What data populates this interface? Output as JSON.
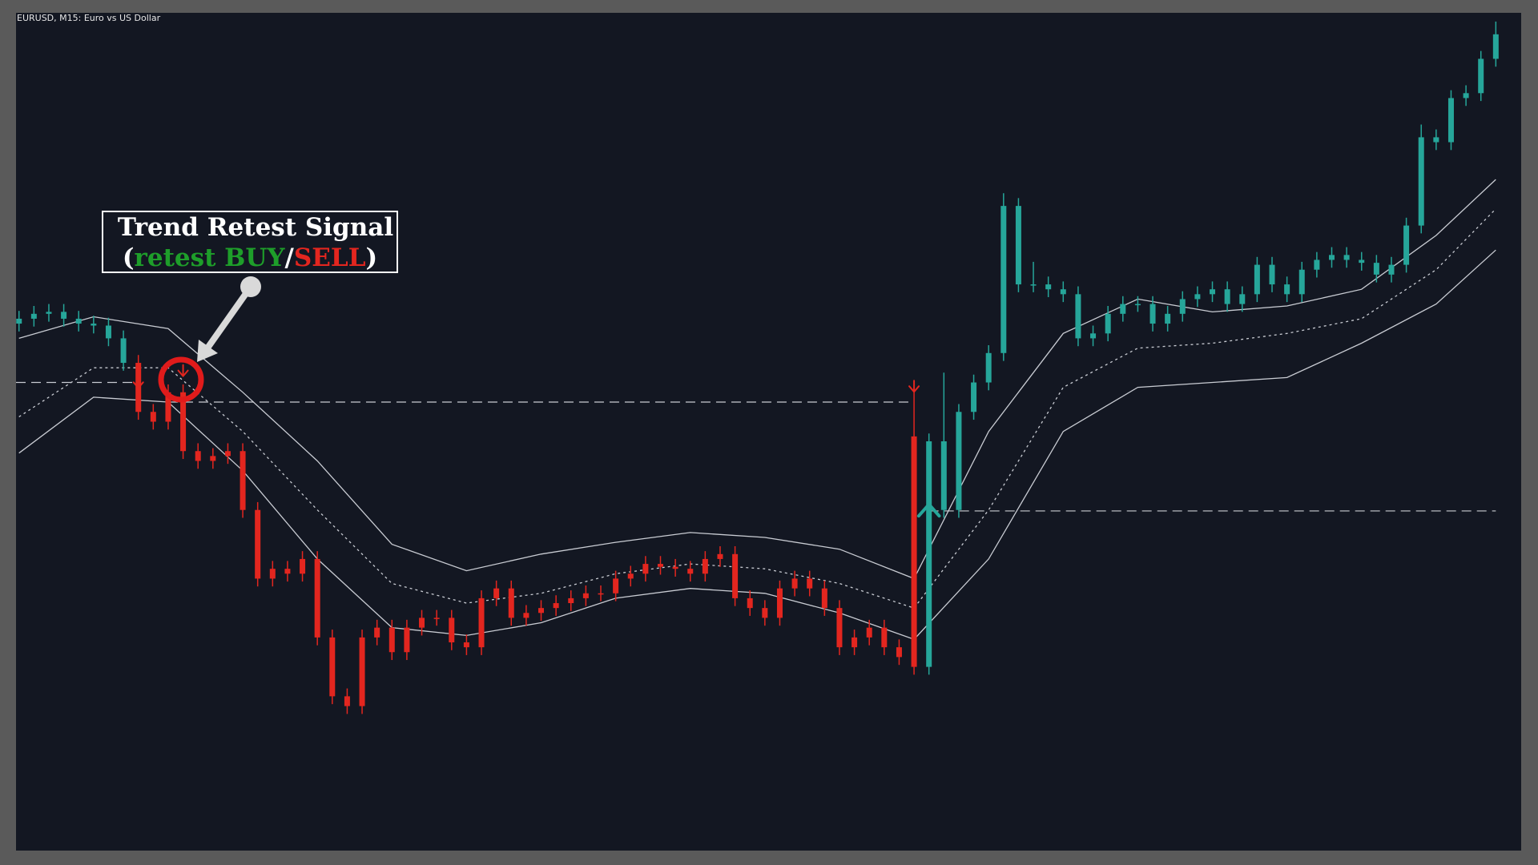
{
  "chart_data": {
    "type": "candlestick",
    "title": "EURUSD, M15:  Euro vs US Dollar",
    "ylim": [
      0,
      854
    ],
    "xlim": [
      -0.2,
      100.7
    ],
    "series": [
      {
        "color": "#26a69a",
        "candles": [
          [
            537,
            550,
            529,
            542
          ],
          [
            542,
            555,
            534,
            547
          ],
          [
            547,
            557,
            539,
            549
          ],
          [
            549,
            557,
            534,
            542
          ],
          [
            542,
            550,
            529,
            537
          ],
          [
            537,
            545,
            527,
            535
          ],
          [
            535,
            543,
            514,
            522
          ],
          [
            522,
            530,
            489,
            497
          ]
        ]
      },
      {
        "color": "#e3261f",
        "candles": [
          [
            497,
            505,
            439,
            447
          ],
          [
            447,
            455,
            429,
            437
          ],
          [
            437,
            475,
            429,
            467
          ],
          [
            467,
            475,
            399,
            407
          ],
          [
            407,
            415,
            389,
            397
          ],
          [
            397,
            410,
            389,
            402
          ],
          [
            402,
            415,
            394,
            407
          ],
          [
            407,
            415,
            339,
            347
          ],
          [
            347,
            355,
            269,
            277
          ],
          [
            277,
            295,
            269,
            287
          ],
          [
            287,
            295,
            274,
            282
          ],
          [
            282,
            305,
            274,
            297
          ],
          [
            297,
            305,
            209,
            217
          ],
          [
            217,
            225,
            149,
            157
          ],
          [
            157,
            165,
            139,
            147
          ],
          [
            147,
            225,
            139,
            217
          ],
          [
            217,
            235,
            209,
            227
          ],
          [
            227,
            235,
            194,
            202
          ],
          [
            202,
            235,
            194,
            227
          ],
          [
            227,
            245,
            219,
            237
          ],
          [
            237,
            245,
            229,
            237
          ],
          [
            237,
            245,
            204,
            212
          ],
          [
            212,
            220,
            199,
            207
          ],
          [
            207,
            265,
            199,
            257
          ],
          [
            257,
            275,
            249,
            267
          ],
          [
            267,
            275,
            229,
            237
          ],
          [
            237,
            250,
            229,
            242
          ],
          [
            242,
            255,
            234,
            247
          ],
          [
            247,
            260,
            239,
            252
          ],
          [
            252,
            265,
            244,
            257
          ],
          [
            257,
            270,
            249,
            262
          ],
          [
            262,
            270,
            254,
            262
          ],
          [
            262,
            285,
            254,
            277
          ],
          [
            277,
            290,
            269,
            282
          ],
          [
            282,
            300,
            274,
            292
          ],
          [
            292,
            300,
            281,
            289
          ],
          [
            289,
            297,
            279,
            287
          ],
          [
            287,
            295,
            274,
            282
          ],
          [
            282,
            305,
            274,
            297
          ],
          [
            297,
            310,
            289,
            302
          ],
          [
            302,
            310,
            249,
            257
          ],
          [
            257,
            265,
            239,
            247
          ],
          [
            247,
            255,
            229,
            237
          ],
          [
            237,
            275,
            229,
            267
          ],
          [
            267,
            285,
            259,
            277
          ],
          [
            277,
            285,
            259,
            267
          ],
          [
            267,
            275,
            239,
            247
          ],
          [
            247,
            255,
            199,
            207
          ],
          [
            207,
            225,
            199,
            217
          ],
          [
            217,
            235,
            209,
            227
          ],
          [
            227,
            235,
            199,
            207
          ],
          [
            207,
            215,
            189,
            197
          ],
          [
            422,
            470,
            179,
            187
          ]
        ]
      },
      {
        "color": "#26a69a",
        "candles": [
          [
            187,
            425,
            179,
            417
          ],
          [
            417,
            487,
            339,
            347
          ],
          [
            347,
            455,
            339,
            447
          ],
          [
            447,
            485,
            439,
            477
          ],
          [
            477,
            515,
            469,
            507
          ],
          [
            507,
            670,
            499,
            657
          ],
          [
            657,
            665,
            569,
            577
          ],
          [
            577,
            600,
            569,
            577
          ],
          [
            577,
            585,
            564,
            572
          ],
          [
            572,
            580,
            559,
            567
          ],
          [
            567,
            575,
            514,
            522
          ],
          [
            522,
            535,
            514,
            527
          ],
          [
            527,
            555,
            519,
            547
          ],
          [
            547,
            565,
            539,
            557
          ],
          [
            557,
            565,
            549,
            557
          ],
          [
            557,
            565,
            529,
            537
          ],
          [
            537,
            555,
            529,
            547
          ],
          [
            547,
            570,
            539,
            562
          ],
          [
            562,
            575,
            554,
            567
          ],
          [
            567,
            580,
            559,
            572
          ],
          [
            572,
            580,
            549,
            557
          ],
          [
            557,
            575,
            549,
            567
          ],
          [
            567,
            605,
            559,
            597
          ],
          [
            597,
            605,
            569,
            577
          ],
          [
            577,
            585,
            559,
            567
          ],
          [
            567,
            600,
            559,
            592
          ],
          [
            592,
            610,
            584,
            602
          ],
          [
            602,
            615,
            594,
            607
          ],
          [
            607,
            615,
            594,
            602
          ],
          [
            602,
            610,
            591,
            599
          ],
          [
            599,
            607,
            579,
            587
          ],
          [
            587,
            605,
            579,
            597
          ],
          [
            597,
            645,
            589,
            637
          ],
          [
            637,
            740,
            629,
            727
          ],
          [
            727,
            735,
            714,
            722
          ],
          [
            722,
            775,
            714,
            767
          ],
          [
            767,
            780,
            759,
            772
          ],
          [
            772,
            815,
            764,
            807
          ],
          [
            807,
            845,
            799,
            832
          ]
        ]
      }
    ],
    "band_x": [
      0,
      5,
      10,
      15,
      20,
      25,
      30,
      35,
      40,
      45,
      50,
      55,
      60,
      65,
      70,
      75,
      80,
      85,
      90,
      95,
      99
    ],
    "bands": [
      {
        "color": "#c9ccd3",
        "dash": "none",
        "values": [
          522,
          544,
          532,
          467,
          397,
          312,
          285,
          302,
          314,
          324,
          319,
          307,
          277,
          427,
          527,
          562,
          549,
          555,
          572,
          627,
          684
        ]
      },
      {
        "color": "#c9ccd3",
        "dash": "3 4",
        "values": [
          442,
          492,
          492,
          427,
          347,
          272,
          252,
          262,
          282,
          292,
          287,
          272,
          247,
          347,
          472,
          512,
          517,
          527,
          542,
          592,
          654
        ]
      },
      {
        "color": "#c9ccd3",
        "dash": "none",
        "values": [
          405,
          462,
          457,
          387,
          297,
          227,
          219,
          232,
          257,
          267,
          262,
          242,
          215,
          297,
          427,
          472,
          477,
          482,
          517,
          557,
          612
        ]
      }
    ],
    "levels": [
      {
        "value": 477,
        "x": [
          -0.2,
          8
        ]
      },
      {
        "value": 457,
        "x": [
          10,
          60
        ]
      },
      {
        "value": 346,
        "x": [
          61,
          99
        ]
      }
    ],
    "signals": [
      {
        "direction": "sell",
        "color": "#e3261f",
        "x": 8,
        "value": 478
      },
      {
        "direction": "sell",
        "color": "#e3261f",
        "x": 11,
        "value": 490
      },
      {
        "direction": "sell",
        "color": "#e3261f",
        "x": 60,
        "value": 474
      },
      {
        "direction": "buy",
        "color": "#26a69a",
        "x": 61,
        "value": 337
      }
    ],
    "annotation": {
      "title": "Trend Retest Signal",
      "parts": [
        {
          "text": "(",
          "color": "#ffffff"
        },
        {
          "text": "retest BUY",
          "color": "#1e9e2a"
        },
        {
          "text": "/",
          "color": "#ffffff"
        },
        {
          "text": "SELL",
          "color": "#e3261f"
        },
        {
          "text": ")",
          "color": "#ffffff"
        }
      ]
    }
  }
}
